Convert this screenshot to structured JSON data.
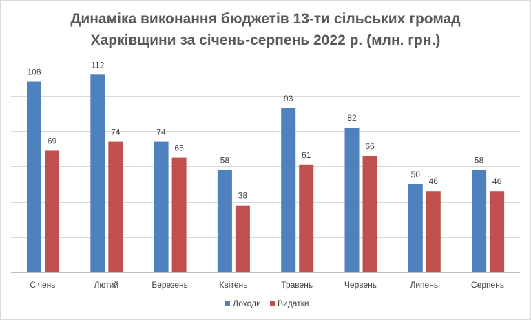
{
  "chart_data": {
    "type": "bar",
    "title_line1": "Динаміка виконання бюджетів 13-ти сільських громад",
    "title_line2": "Харківщини за січень-серпень 2022 р. (млн. грн.)",
    "categories": [
      "Січень",
      "Лютий",
      "Березень",
      "Квітень",
      "Травень",
      "Червень",
      "Липень",
      "Серпень"
    ],
    "series": [
      {
        "name": "Доходи",
        "color": "#4f81bd",
        "values": [
          108,
          112,
          74,
          58,
          93,
          82,
          50,
          58
        ]
      },
      {
        "name": "Видатки",
        "color": "#c0504d",
        "values": [
          69,
          74,
          65,
          38,
          61,
          66,
          46,
          46
        ]
      }
    ],
    "ylim": [
      0,
      140
    ],
    "gridlines": [
      20,
      40,
      60,
      80,
      100,
      120,
      140
    ],
    "grid": true,
    "axis_labels_visible": false,
    "legend_position": "bottom"
  }
}
